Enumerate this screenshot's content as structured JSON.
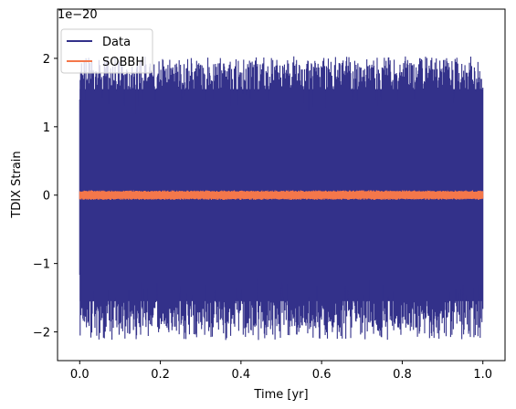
{
  "chart_data": {
    "type": "line",
    "title": "",
    "xlabel": "Time [yr]",
    "ylabel": "TDIX Strain",
    "y_offset_label": "1e−20",
    "xlim": [
      -0.055,
      1.055
    ],
    "ylim": [
      -2.42,
      2.72
    ],
    "x_ticks": [
      0.0,
      0.2,
      0.4,
      0.6,
      0.8,
      1.0
    ],
    "x_tick_labels": [
      "0.0",
      "0.2",
      "0.4",
      "0.6",
      "0.8",
      "1.0"
    ],
    "y_ticks": [
      -2,
      -1,
      0,
      1,
      2
    ],
    "y_tick_labels": [
      "−2",
      "−1",
      "0",
      "1",
      "2"
    ],
    "grid": false,
    "legend_position": "upper-left",
    "series": [
      {
        "name": "Data",
        "color": "#33318a",
        "x_range": [
          0.0,
          1.0
        ],
        "typical_range": [
          -1.55,
          1.55
        ],
        "max_value": 2.03,
        "min_value": -2.12
      },
      {
        "name": "SOBBH",
        "color": "#f4774a",
        "x_range": [
          0.0,
          1.0
        ],
        "typical_range": [
          -0.05,
          0.05
        ],
        "max_value": 0.07,
        "min_value": -0.07
      }
    ]
  }
}
